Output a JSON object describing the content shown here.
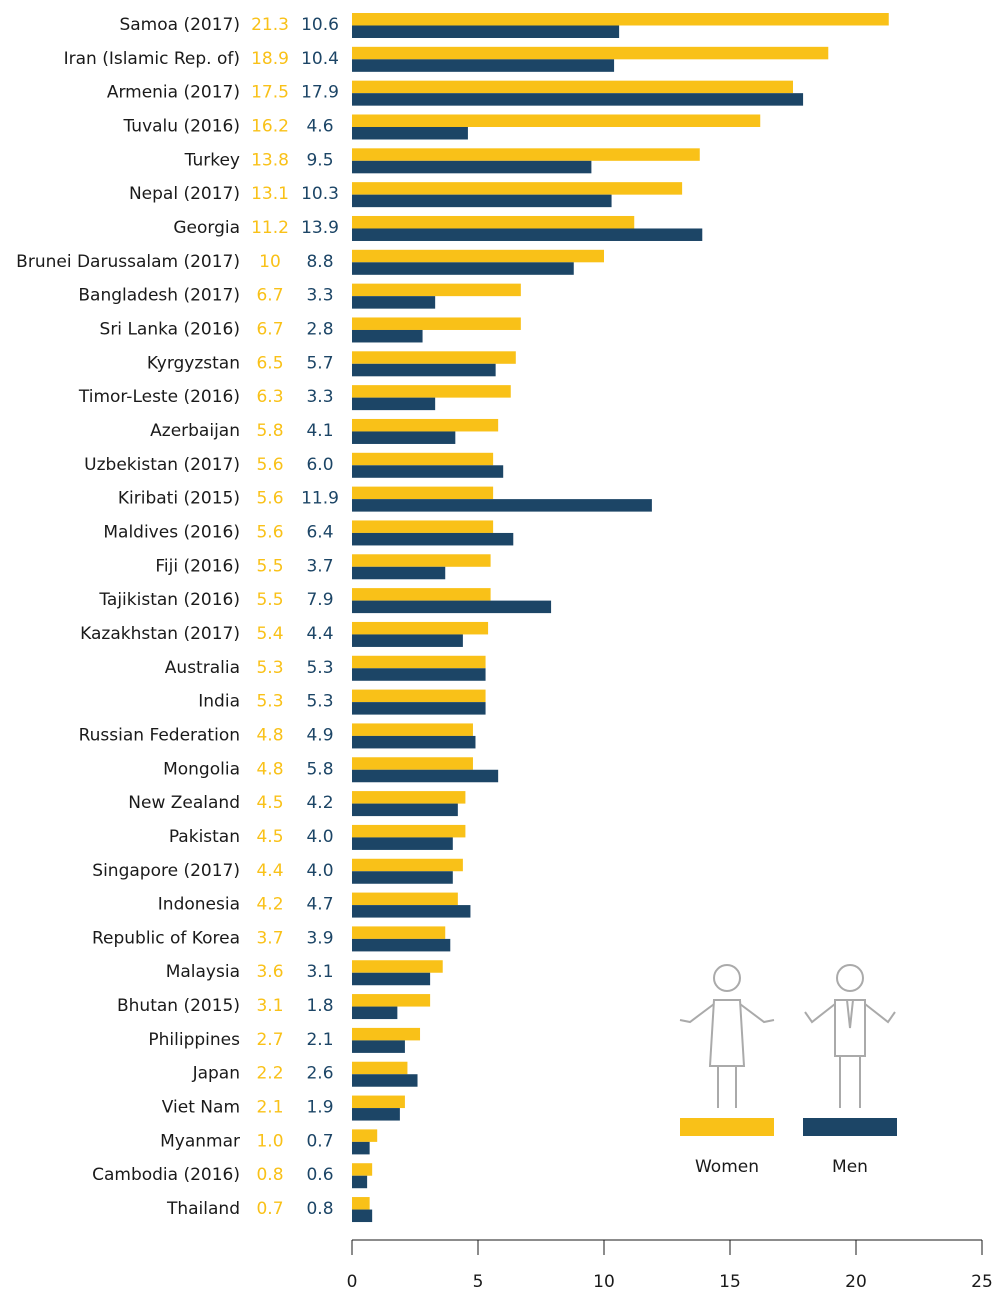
{
  "chart_data": {
    "type": "hbar",
    "categories": [
      "Samoa (2017)",
      "Iran (Islamic Rep. of)",
      "Armenia (2017)",
      "Tuvalu (2016)",
      "Turkey",
      "Nepal (2017)",
      "Georgia",
      "Brunei Darussalam (2017)",
      "Bangladesh (2017)",
      "Sri Lanka (2016)",
      "Kyrgyzstan",
      "Timor-Leste (2016)",
      "Azerbaijan",
      "Uzbekistan (2017)",
      "Kiribati (2015)",
      "Maldives (2016)",
      "Fiji (2016)",
      "Tajikistan (2016)",
      "Kazakhstan (2017)",
      "Australia",
      "India",
      "Russian Federation",
      "Mongolia",
      "New Zealand",
      "Pakistan",
      "Singapore (2017)",
      "Indonesia",
      "Republic of Korea",
      "Malaysia",
      "Bhutan (2015)",
      "Philippines",
      "Japan",
      "Viet Nam",
      "Myanmar",
      "Cambodia (2016)",
      "Thailand"
    ],
    "series": [
      {
        "name": "Women",
        "color": "#f9c118",
        "values": [
          21.3,
          18.9,
          17.5,
          16.2,
          13.8,
          13.1,
          11.2,
          10,
          6.7,
          6.7,
          6.5,
          6.3,
          5.8,
          5.6,
          5.6,
          5.6,
          5.5,
          5.5,
          5.4,
          5.3,
          5.3,
          4.8,
          4.8,
          4.5,
          4.5,
          4.4,
          4.2,
          3.7,
          3.6,
          3.1,
          2.7,
          2.2,
          2.1,
          1.0,
          0.8,
          0.7
        ],
        "value_labels": [
          "21.3",
          "18.9",
          "17.5",
          "16.2",
          "13.8",
          "13.1",
          "11.2",
          "10",
          "6.7",
          "6.7",
          "6.5",
          "6.3",
          "5.8",
          "5.6",
          "5.6",
          "5.6",
          "5.5",
          "5.5",
          "5.4",
          "5.3",
          "5.3",
          "4.8",
          "4.8",
          "4.5",
          "4.5",
          "4.4",
          "4.2",
          "3.7",
          "3.6",
          "3.1",
          "2.7",
          "2.2",
          "2.1",
          "1.0",
          "0.8",
          "0.7"
        ]
      },
      {
        "name": "Men",
        "color": "#1c4566",
        "values": [
          10.6,
          10.4,
          17.9,
          4.6,
          9.5,
          10.3,
          13.9,
          8.8,
          3.3,
          2.8,
          5.7,
          3.3,
          4.1,
          6.0,
          11.9,
          6.4,
          3.7,
          7.9,
          4.4,
          5.3,
          5.3,
          4.9,
          5.8,
          4.2,
          4.0,
          4.0,
          4.7,
          3.9,
          3.1,
          1.8,
          2.1,
          2.6,
          1.9,
          0.7,
          0.6,
          0.8
        ],
        "value_labels": [
          "10.6",
          "10.4",
          "17.9",
          "4.6",
          "9.5",
          "10.3",
          "13.9",
          "8.8",
          "3.3",
          "2.8",
          "5.7",
          "3.3",
          "4.1",
          "6.0",
          "11.9",
          "6.4",
          "3.7",
          "7.9",
          "4.4",
          "5.3",
          "5.3",
          "4.9",
          "5.8",
          "4.2",
          "4.0",
          "4.0",
          "4.7",
          "3.9",
          "3.1",
          "1.8",
          "2.1",
          "2.6",
          "1.9",
          "0.7",
          "0.6",
          "0.8"
        ]
      }
    ],
    "xlim": [
      0,
      25
    ],
    "xticks": [
      0,
      5,
      10,
      15,
      20,
      25
    ]
  }
}
